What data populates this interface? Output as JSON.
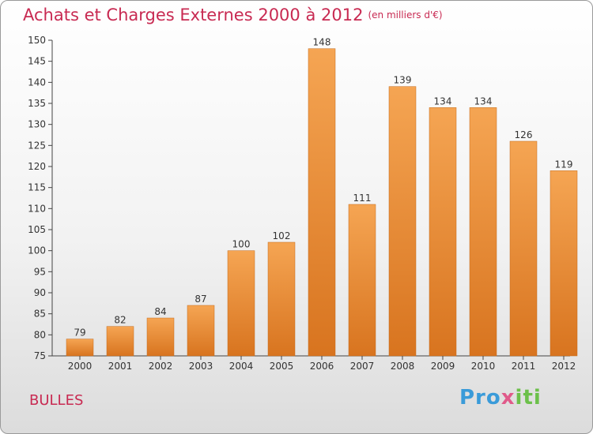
{
  "title": "Achats et Charges Externes 2000 à 2012",
  "subtitle": "(en milliers d'€)",
  "commune": "BULLES",
  "logo": {
    "parts": [
      "Pro",
      "x",
      "iti"
    ],
    "colors": [
      "#3a9bd9",
      "#e05a8a",
      "#f39a1e",
      "#6cc04a"
    ]
  },
  "colors": {
    "bar_top": "#f5a553",
    "bar_bottom": "#d8741f",
    "title": "#c82a52"
  },
  "chart_data": {
    "type": "bar",
    "categories": [
      "2000",
      "2001",
      "2002",
      "2003",
      "2004",
      "2005",
      "2006",
      "2007",
      "2008",
      "2009",
      "2010",
      "2011",
      "2012"
    ],
    "values": [
      79,
      82,
      84,
      87,
      100,
      102,
      148,
      111,
      139,
      134,
      134,
      126,
      119
    ],
    "ylim": [
      75,
      150
    ],
    "yticks": [
      75,
      80,
      85,
      90,
      95,
      100,
      105,
      110,
      115,
      120,
      125,
      130,
      135,
      140,
      145,
      150
    ],
    "grid": false
  }
}
